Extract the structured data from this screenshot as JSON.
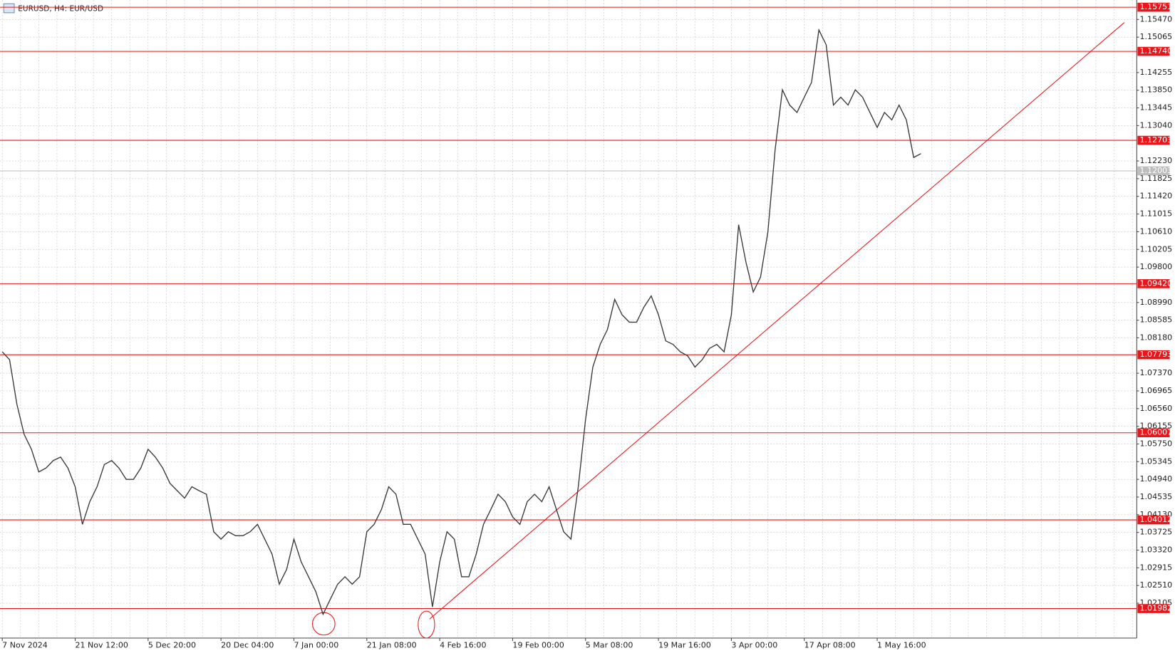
{
  "chart_data": {
    "type": "line",
    "title": "EURUSD, H4:  EUR/USD",
    "categories": [
      "7 Nov 2024",
      null,
      null,
      null,
      null,
      null,
      null,
      null,
      null,
      null,
      "21 Nov 12:00",
      null,
      null,
      null,
      null,
      null,
      null,
      null,
      null,
      null,
      "5 Dec 20:00",
      null,
      null,
      null,
      null,
      null,
      null,
      null,
      null,
      null,
      "20 Dec 04:00",
      null,
      null,
      null,
      null,
      null,
      null,
      null,
      null,
      null,
      "7 Jan 00:00",
      null,
      null,
      null,
      null,
      null,
      null,
      null,
      null,
      null,
      "21 Jan 08:00",
      null,
      null,
      null,
      null,
      null,
      null,
      null,
      null,
      null,
      "4 Feb 16:00",
      null,
      null,
      null,
      null,
      null,
      null,
      null,
      null,
      null,
      "19 Feb 00:00",
      null,
      null,
      null,
      null,
      null,
      null,
      null,
      null,
      null,
      "5 Mar 08:00",
      null,
      null,
      null,
      null,
      null,
      null,
      null,
      null,
      null,
      "19 Mar 16:00",
      null,
      null,
      null,
      null,
      null,
      null,
      null,
      null,
      null,
      "3 Apr 00:00",
      null,
      null,
      null,
      null,
      null,
      null,
      null,
      null,
      null,
      "17 Apr 08:00",
      null,
      null,
      null,
      null,
      null,
      null,
      null,
      null,
      null,
      "1 May 16:00",
      null,
      null,
      null,
      null,
      null,
      null
    ],
    "series": [
      {
        "name": "EURUSD",
        "color": "#3a3a3a",
        "values": [
          1.0786,
          1.0768,
          1.0666,
          1.0597,
          1.0563,
          1.0511,
          1.052,
          1.0537,
          1.0545,
          1.052,
          1.0477,
          1.0391,
          1.0443,
          1.0477,
          1.0528,
          1.0537,
          1.052,
          1.0494,
          1.0494,
          1.052,
          1.0563,
          1.0545,
          1.052,
          1.0485,
          1.0468,
          1.0451,
          1.0477,
          1.0468,
          1.046,
          1.0374,
          1.0357,
          1.0374,
          1.0365,
          1.0365,
          1.0374,
          1.0391,
          1.0357,
          1.0323,
          1.0254,
          1.0288,
          1.0357,
          1.0305,
          1.0271,
          1.0237,
          1.0185,
          1.022,
          1.0254,
          1.0271,
          1.0254,
          1.0271,
          1.0374,
          1.0391,
          1.0425,
          1.0477,
          1.046,
          1.0391,
          1.0391,
          1.0357,
          1.0323,
          1.0202,
          1.0305,
          1.0374,
          1.0357,
          1.0271,
          1.0271,
          1.0323,
          1.0391,
          1.0425,
          1.046,
          1.0443,
          1.0408,
          1.0391,
          1.0443,
          1.046,
          1.0443,
          1.0477,
          1.0425,
          1.0374,
          1.0357,
          1.0477,
          1.0631,
          1.0751,
          1.0803,
          1.0837,
          1.0906,
          1.0871,
          1.0854,
          1.0854,
          1.0888,
          1.0914,
          1.0871,
          1.0811,
          1.0803,
          1.0786,
          1.0777,
          1.0751,
          1.0768,
          1.0794,
          1.0803,
          1.0786,
          1.0871,
          1.1077,
          1.0991,
          1.0923,
          1.0957,
          1.106,
          1.1249,
          1.1386,
          1.1351,
          1.1334,
          1.1369,
          1.1403,
          1.1523,
          1.1489,
          1.1351,
          1.1369,
          1.1351,
          1.1386,
          1.1369,
          1.1334,
          1.13,
          1.1334,
          1.1317,
          1.1351,
          1.1317,
          1.1231,
          1.124
        ]
      }
    ],
    "ylim": [
      1.01307,
      1.15916
    ],
    "yticks": [
      {
        "value": 1.1547,
        "label": "1.15470"
      },
      1.15065,
      1.14255,
      {
        "value": 1.1385,
        "label": "1.13850"
      },
      1.13445,
      {
        "value": 1.1304,
        "label": "1.13040"
      },
      {
        "value": 1.1223,
        "label": "1.12230"
      },
      1.11825,
      {
        "value": 1.1142,
        "label": "1.11420"
      },
      1.11015,
      {
        "value": 1.1061,
        "label": "1.10610"
      },
      1.10205,
      {
        "value": 1.098,
        "label": "1.09800"
      },
      {
        "value": 1.0899,
        "label": "1.08990"
      },
      1.08585,
      {
        "value": 1.0818,
        "label": "1.08180"
      },
      {
        "value": 1.0737,
        "label": "1.07370"
      },
      1.06965,
      {
        "value": 1.0656,
        "label": "1.06560"
      },
      1.06155,
      {
        "value": 1.0575,
        "label": "1.05750"
      },
      1.05345,
      {
        "value": 1.0494,
        "label": "1.04940"
      },
      1.04535,
      {
        "value": 1.0413,
        "label": "1.04130"
      },
      1.03725,
      {
        "value": 1.0332,
        "label": "1.03320"
      },
      1.02915,
      {
        "value": 1.0251,
        "label": "1.02510"
      },
      1.02105
    ],
    "levels": [
      1.15751,
      {
        "value": 1.1474,
        "label": "1.14740"
      },
      1.12703,
      {
        "value": 1.0942,
        "label": "1.09420"
      },
      1.07793,
      1.06007,
      1.04012,
      1.01982
    ],
    "level_color": "#e8161b",
    "bid": 1.12003,
    "trendline": {
      "x": [
        58.6,
        153.9
      ],
      "y": [
        1.0174,
        1.15401
      ]
    },
    "grid": true
  }
}
